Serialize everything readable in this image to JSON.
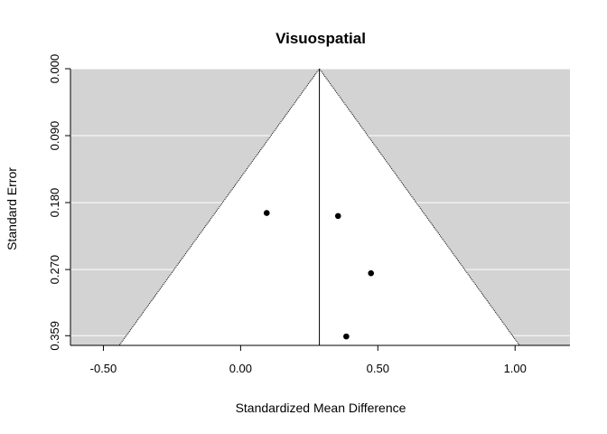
{
  "chart_data": {
    "type": "scatter",
    "subtype": "funnel",
    "title": "Visuospatial",
    "xlabel": "Standardized Mean Difference",
    "ylabel": "Standard Error",
    "xlim": [
      -0.62,
      1.2
    ],
    "ylim": [
      0.372,
      0.0
    ],
    "x_ticks": [
      {
        "value": -0.5,
        "label": "-0.50"
      },
      {
        "value": 0.0,
        "label": "0.00"
      },
      {
        "value": 0.5,
        "label": "0.50"
      },
      {
        "value": 1.0,
        "label": "1.00"
      }
    ],
    "y_ticks": [
      {
        "value": 0.0,
        "label": "0.000"
      },
      {
        "value": 0.09,
        "label": "0.090"
      },
      {
        "value": 0.18,
        "label": "0.180"
      },
      {
        "value": 0.27,
        "label": "0.270"
      },
      {
        "value": 0.359,
        "label": "0.359"
      }
    ],
    "summary_estimate": 0.287,
    "funnel_z": 1.96,
    "points": [
      {
        "x": 0.095,
        "y": 0.194
      },
      {
        "x": 0.355,
        "y": 0.198
      },
      {
        "x": 0.475,
        "y": 0.275
      },
      {
        "x": 0.385,
        "y": 0.36
      }
    ],
    "colors": {
      "background": "#d3d3d3",
      "funnel_fill": "#ffffff",
      "gridline": "#ffffff",
      "point": "#000000",
      "line": "#000000"
    }
  }
}
